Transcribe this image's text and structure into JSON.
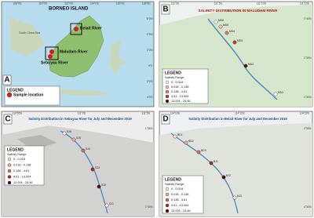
{
  "panels": [
    {
      "letter": "A",
      "title": "BORNEO ISLAND",
      "places": [
        "South China Sea",
        "Belait River",
        "Maludam River",
        "Sebuyau River"
      ],
      "legend_title": "LEGEND",
      "legend_items": [
        "Sample location"
      ],
      "legend_colors": [
        "#d62020"
      ],
      "x_ticks": [
        "108°0'E",
        "110°0'E",
        "112°0'E",
        "114°0'E",
        "116°0'E",
        "118°0'E"
      ],
      "y_ticks": [
        "6°0'N",
        "4°0'N",
        "2°0'N",
        "0°0'",
        "2°0'S",
        "4°0'S"
      ]
    },
    {
      "letter": "B",
      "title": "SALINITY DISTRIBUTION IN MALUDAM RIVER",
      "stations": [
        "MD6",
        "MD5",
        "MD4",
        "MD3",
        "MD2",
        "MD1"
      ],
      "legend_title": "LEGEND",
      "legend_subtitle": "Salinity Range",
      "legend_items": [
        "0 - 0.018",
        "0.018 - 0.138",
        "0.138 - 4.61",
        "4.61 - 13.004",
        "13.004 - 24.46"
      ],
      "legend_colors": [
        "#ffffff",
        "#f4c2b8",
        "#e57a68",
        "#c0392b",
        "#5a0f12"
      ],
      "x_ticks": [
        "111°0'E",
        "111°5'E",
        "111°10'E",
        "111°15'E"
      ],
      "y_ticks": [
        "1°40'N",
        "1°35'N",
        "1°30'N"
      ]
    },
    {
      "letter": "C",
      "title": "Salinity Distribution in Sebuyau River for July and December 2019",
      "stations": [
        "SJ6",
        "SJ5",
        "SJ4",
        "SJ3",
        "SJ2",
        "SJ1"
      ],
      "legend_title": "LEGEND",
      "legend_subtitle": "Salinity Range",
      "legend_items": [
        "0 - 0.018",
        "0.018 - 0.138",
        "0.138 - 4.61",
        "4.61 - 13.004",
        "13.004 - 24.46"
      ],
      "legend_colors": [
        "#fde3d6",
        "#f4a98f",
        "#e0674f",
        "#a8281f",
        "#4d0c0c"
      ],
      "x_ticks": [
        "110°55'E",
        "111°0'E",
        "111°5'E"
      ],
      "y_ticks": [
        "1°35'N",
        "1°30'N"
      ]
    },
    {
      "letter": "D",
      "title": "Salinity Distribution in Belait River for July and December 2019",
      "stations": [
        "BD1",
        "BD2",
        "BD3",
        "BJ1",
        "BJ2",
        "BJ3"
      ],
      "legend_title": "LEGEND",
      "legend_subtitle": "Salinity Range",
      "legend_items": [
        "0 - 0.018",
        "0.018 - 0.138",
        "0.138 - 4.61",
        "4.61 - 13.004",
        "13.004 - 24.46"
      ],
      "legend_colors": [
        "#fde3d6",
        "#f4a98f",
        "#e0674f",
        "#a8281f",
        "#4d0c0c"
      ],
      "x_ticks": [
        "114°10'E",
        "114°15'E",
        "114°20'E"
      ],
      "y_ticks": [
        "4°35'N",
        "4°30'N"
      ]
    }
  ]
}
